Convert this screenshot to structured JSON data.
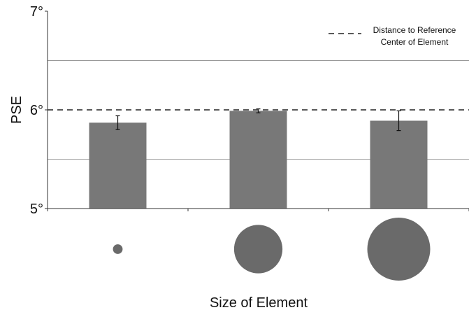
{
  "chart_data": {
    "type": "bar",
    "ylabel": "PSE",
    "xlabel": "Size of Element",
    "ylim": [
      5,
      7
    ],
    "yticks": [
      {
        "value": 5,
        "label": "5°"
      },
      {
        "value": 6,
        "label": "6°"
      },
      {
        "value": 7,
        "label": "7°"
      }
    ],
    "gridlines": [
      5.5,
      6.5
    ],
    "categories": [
      "small",
      "medium",
      "large"
    ],
    "category_marker_size": [
      1,
      5,
      6.5
    ],
    "values": [
      5.87,
      5.99,
      5.89
    ],
    "error": [
      0.07,
      0.02,
      0.1
    ],
    "reference_line": {
      "value": 6,
      "legend_line1": "Distance to Reference",
      "legend_line2": "Center of Element"
    },
    "legend_position": "top-right",
    "colors": {
      "bar": "#787878",
      "marker": "#6a6a6a",
      "grid": "#999999",
      "axis": "#333333"
    }
  }
}
